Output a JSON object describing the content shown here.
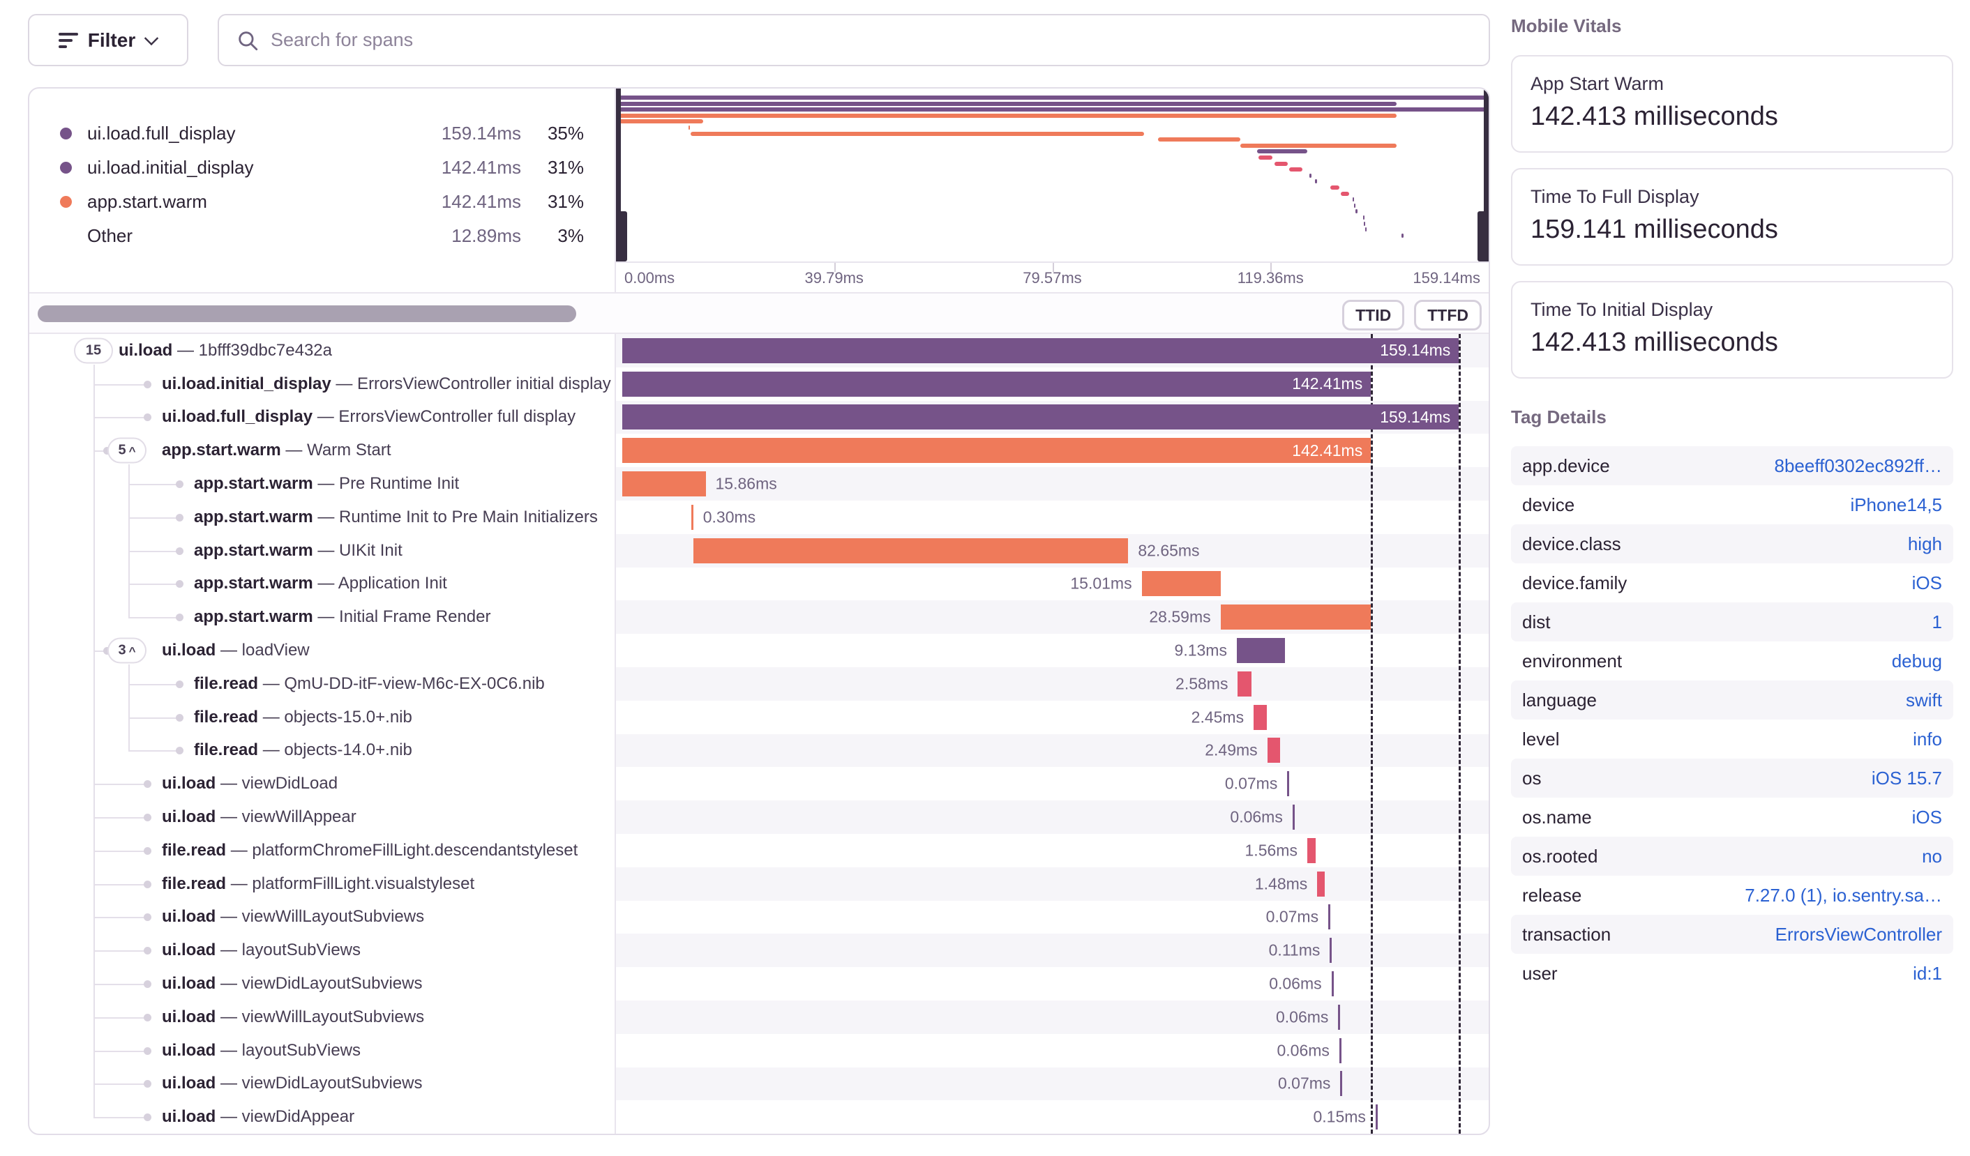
{
  "toolbar": {
    "filter_label": "Filter",
    "search_placeholder": "Search for spans"
  },
  "colors": {
    "purple": "#765389",
    "orange": "#ef7a5a",
    "pink": "#e4566e",
    "link": "#2b61d2"
  },
  "legend": {
    "items": [
      {
        "label": "ui.load.full_display",
        "duration": "159.14ms",
        "percent": "35%",
        "color": "purple"
      },
      {
        "label": "ui.load.initial_display",
        "duration": "142.41ms",
        "percent": "31%",
        "color": "purple"
      },
      {
        "label": "app.start.warm",
        "duration": "142.41ms",
        "percent": "31%",
        "color": "orange"
      },
      {
        "label": "Other",
        "duration": "12.89ms",
        "percent": "3%",
        "color": null
      }
    ]
  },
  "minimap": {
    "axis_labels": [
      "0.00ms",
      "39.79ms",
      "79.57ms",
      "119.36ms",
      "159.14ms"
    ],
    "range_ms": [
      0,
      159.14
    ]
  },
  "markers": {
    "ttid": {
      "label": "TTID",
      "ms": 142.41
    },
    "ttfd": {
      "label": "TTFD",
      "ms": 159.14
    }
  },
  "separator": "—",
  "spans": [
    {
      "op": "ui.load",
      "desc": "1bfff39dbc7e432a",
      "badge": "15",
      "chevron": false,
      "depth": 0,
      "start_ms": 0,
      "duration_ms": 159.14,
      "duration_label": "159.14ms",
      "color": "purple",
      "label_pos": "inside"
    },
    {
      "op": "ui.load.initial_display",
      "desc": "ErrorsViewController initial display",
      "badge": null,
      "chevron": false,
      "depth": 1,
      "start_ms": 0,
      "duration_ms": 142.41,
      "duration_label": "142.41ms",
      "color": "purple",
      "label_pos": "inside"
    },
    {
      "op": "ui.load.full_display",
      "desc": "ErrorsViewController full display",
      "badge": null,
      "chevron": false,
      "depth": 1,
      "start_ms": 0,
      "duration_ms": 159.14,
      "duration_label": "159.14ms",
      "color": "purple",
      "label_pos": "inside"
    },
    {
      "op": "app.start.warm",
      "desc": "Warm Start",
      "badge": "5",
      "chevron": true,
      "depth": 1,
      "start_ms": 0,
      "duration_ms": 142.41,
      "duration_label": "142.41ms",
      "color": "orange",
      "label_pos": "inside"
    },
    {
      "op": "app.start.warm",
      "desc": "Pre Runtime Init",
      "badge": null,
      "chevron": false,
      "depth": 2,
      "start_ms": 0,
      "duration_ms": 15.86,
      "duration_label": "15.86ms",
      "color": "orange",
      "label_pos": "after"
    },
    {
      "op": "app.start.warm",
      "desc": "Runtime Init to Pre Main Initializers",
      "badge": null,
      "chevron": false,
      "depth": 2,
      "start_ms": 13.2,
      "duration_ms": 0.3,
      "duration_label": "0.30ms",
      "color": "orange",
      "label_pos": "after"
    },
    {
      "op": "app.start.warm",
      "desc": "UIKit Init",
      "badge": null,
      "chevron": false,
      "depth": 2,
      "start_ms": 13.6,
      "duration_ms": 82.65,
      "duration_label": "82.65ms",
      "color": "orange",
      "label_pos": "after"
    },
    {
      "op": "app.start.warm",
      "desc": "Application Init",
      "badge": null,
      "chevron": false,
      "depth": 2,
      "start_ms": 98.8,
      "duration_ms": 15.01,
      "duration_label": "15.01ms",
      "color": "orange",
      "label_pos": "before"
    },
    {
      "op": "app.start.warm",
      "desc": "Initial Frame Render",
      "badge": null,
      "chevron": false,
      "depth": 2,
      "start_ms": 113.8,
      "duration_ms": 28.59,
      "duration_label": "28.59ms",
      "color": "orange",
      "label_pos": "before"
    },
    {
      "op": "ui.load",
      "desc": "loadView",
      "badge": "3",
      "chevron": true,
      "depth": 1,
      "start_ms": 116.9,
      "duration_ms": 9.13,
      "duration_label": "9.13ms",
      "color": "purple",
      "label_pos": "before"
    },
    {
      "op": "file.read",
      "desc": "QmU-DD-itF-view-M6c-EX-0C6.nib",
      "badge": null,
      "chevron": false,
      "depth": 2,
      "start_ms": 117.1,
      "duration_ms": 2.58,
      "duration_label": "2.58ms",
      "color": "pink",
      "label_pos": "before"
    },
    {
      "op": "file.read",
      "desc": "objects-15.0+.nib",
      "badge": null,
      "chevron": false,
      "depth": 2,
      "start_ms": 120.1,
      "duration_ms": 2.45,
      "duration_label": "2.45ms",
      "color": "pink",
      "label_pos": "before"
    },
    {
      "op": "file.read",
      "desc": "objects-14.0+.nib",
      "badge": null,
      "chevron": false,
      "depth": 2,
      "start_ms": 122.7,
      "duration_ms": 2.49,
      "duration_label": "2.49ms",
      "color": "pink",
      "label_pos": "before"
    },
    {
      "op": "ui.load",
      "desc": "viewDidLoad",
      "badge": null,
      "chevron": false,
      "depth": 1,
      "start_ms": 126.5,
      "duration_ms": 0.07,
      "duration_label": "0.07ms",
      "color": "purple",
      "label_pos": "before"
    },
    {
      "op": "ui.load",
      "desc": "viewWillAppear",
      "badge": null,
      "chevron": false,
      "depth": 1,
      "start_ms": 127.5,
      "duration_ms": 0.06,
      "duration_label": "0.06ms",
      "color": "purple",
      "label_pos": "before"
    },
    {
      "op": "file.read",
      "desc": "platformChromeFillLight.descendantstyleset",
      "badge": null,
      "chevron": false,
      "depth": 1,
      "start_ms": 130.3,
      "duration_ms": 1.56,
      "duration_label": "1.56ms",
      "color": "pink",
      "label_pos": "before"
    },
    {
      "op": "file.read",
      "desc": "platformFillLight.visualstyleset",
      "badge": null,
      "chevron": false,
      "depth": 1,
      "start_ms": 132.2,
      "duration_ms": 1.48,
      "duration_label": "1.48ms",
      "color": "pink",
      "label_pos": "before"
    },
    {
      "op": "ui.load",
      "desc": "viewWillLayoutSubviews",
      "badge": null,
      "chevron": false,
      "depth": 1,
      "start_ms": 134.3,
      "duration_ms": 0.07,
      "duration_label": "0.07ms",
      "color": "purple",
      "label_pos": "before"
    },
    {
      "op": "ui.load",
      "desc": "layoutSubViews",
      "badge": null,
      "chevron": false,
      "depth": 1,
      "start_ms": 134.6,
      "duration_ms": 0.11,
      "duration_label": "0.11ms",
      "color": "purple",
      "label_pos": "before"
    },
    {
      "op": "ui.load",
      "desc": "viewDidLayoutSubviews",
      "badge": null,
      "chevron": false,
      "depth": 1,
      "start_ms": 134.9,
      "duration_ms": 0.06,
      "duration_label": "0.06ms",
      "color": "purple",
      "label_pos": "before"
    },
    {
      "op": "ui.load",
      "desc": "viewWillLayoutSubviews",
      "badge": null,
      "chevron": false,
      "depth": 1,
      "start_ms": 136.2,
      "duration_ms": 0.06,
      "duration_label": "0.06ms",
      "color": "purple",
      "label_pos": "before"
    },
    {
      "op": "ui.load",
      "desc": "layoutSubViews",
      "badge": null,
      "chevron": false,
      "depth": 1,
      "start_ms": 136.4,
      "duration_ms": 0.06,
      "duration_label": "0.06ms",
      "color": "purple",
      "label_pos": "before"
    },
    {
      "op": "ui.load",
      "desc": "viewDidLayoutSubviews",
      "badge": null,
      "chevron": false,
      "depth": 1,
      "start_ms": 136.6,
      "duration_ms": 0.07,
      "duration_label": "0.07ms",
      "color": "purple",
      "label_pos": "before"
    },
    {
      "op": "ui.load",
      "desc": "viewDidAppear",
      "badge": null,
      "chevron": false,
      "depth": 1,
      "start_ms": 143.3,
      "duration_ms": 0.15,
      "duration_label": "0.15ms",
      "color": "purple",
      "label_pos": "before"
    }
  ],
  "vitals": {
    "title": "Mobile Vitals",
    "cards": [
      {
        "label": "App Start Warm",
        "value": "142.413 milliseconds"
      },
      {
        "label": "Time To Full Display",
        "value": "159.141 milliseconds"
      },
      {
        "label": "Time To Initial Display",
        "value": "142.413 milliseconds"
      }
    ]
  },
  "tags": {
    "title": "Tag Details",
    "rows": [
      {
        "key": "app.device",
        "value": "8beeff0302ec892ff…"
      },
      {
        "key": "device",
        "value": "iPhone14,5"
      },
      {
        "key": "device.class",
        "value": "high"
      },
      {
        "key": "device.family",
        "value": "iOS"
      },
      {
        "key": "dist",
        "value": "1"
      },
      {
        "key": "environment",
        "value": "debug"
      },
      {
        "key": "language",
        "value": "swift"
      },
      {
        "key": "level",
        "value": "info"
      },
      {
        "key": "os",
        "value": "iOS 15.7"
      },
      {
        "key": "os.name",
        "value": "iOS"
      },
      {
        "key": "os.rooted",
        "value": "no"
      },
      {
        "key": "release",
        "value": "7.27.0 (1), io.sentry.sa…"
      },
      {
        "key": "transaction",
        "value": "ErrorsViewController"
      },
      {
        "key": "user",
        "value": "id:1"
      }
    ]
  }
}
